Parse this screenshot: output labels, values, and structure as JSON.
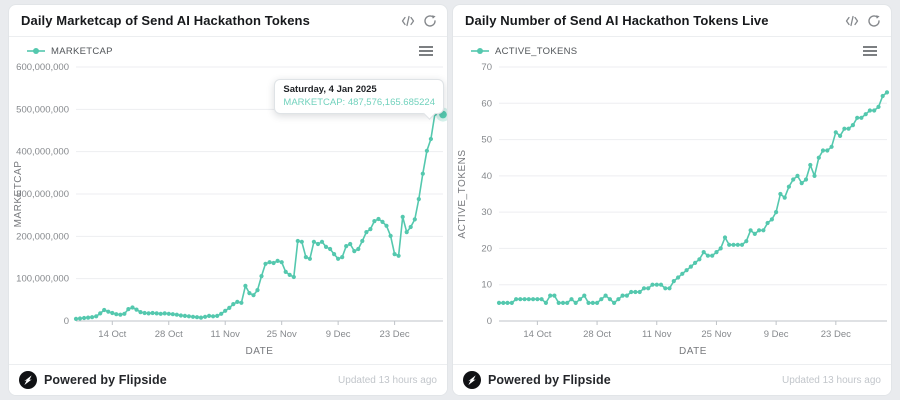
{
  "accent_color": "#54c8ae",
  "footer": {
    "powered_by": "Powered by Flipside",
    "updated": "Updated 13 hours ago"
  },
  "cards": [
    {
      "title": "Daily Marketcap of Send AI Hackathon Tokens",
      "legend": "MARKETCAP",
      "tooltip": {
        "date": "Saturday, 4 Jan 2025",
        "text": "MARKETCAP: 487,576,165.685224"
      }
    },
    {
      "title": "Daily Number of Send AI Hackathon Tokens Live",
      "legend": "ACTIVE_TOKENS"
    }
  ],
  "chart_data": [
    {
      "type": "line",
      "series_name": "MARKETCAP",
      "color": "#54c8ae",
      "xlabel": "DATE",
      "ylabel": "MARKETCAP",
      "ylim": [
        0,
        600000000
      ],
      "y_ticks": [
        0,
        100000000,
        200000000,
        300000000,
        400000000,
        500000000,
        600000000
      ],
      "x_tick_labels": [
        "14 Oct",
        "28 Oct",
        "11 Nov",
        "25 Nov",
        "9 Dec",
        "23 Dec"
      ],
      "x_tick_indices": [
        9,
        23,
        37,
        51,
        65,
        79
      ],
      "grid": true,
      "legend_position": "top-left",
      "highlight_index": 91,
      "values": [
        5000000,
        6000000,
        7000000,
        8000000,
        9000000,
        11000000,
        18000000,
        26000000,
        22000000,
        19000000,
        16000000,
        15000000,
        17000000,
        28000000,
        32000000,
        27000000,
        21000000,
        19000000,
        18000000,
        19000000,
        18000000,
        17000000,
        18000000,
        17000000,
        16000000,
        15000000,
        13000000,
        12000000,
        11000000,
        10000000,
        9000000,
        8000000,
        10000000,
        12000000,
        11000000,
        12000000,
        17000000,
        24000000,
        31000000,
        40000000,
        45000000,
        43000000,
        83000000,
        66000000,
        61000000,
        73000000,
        106000000,
        135000000,
        139000000,
        137000000,
        142000000,
        139000000,
        116000000,
        109000000,
        104000000,
        189000000,
        187000000,
        151000000,
        147000000,
        187000000,
        182000000,
        187000000,
        175000000,
        170000000,
        158000000,
        147000000,
        151000000,
        177000000,
        182000000,
        165000000,
        170000000,
        189000000,
        210000000,
        217000000,
        236000000,
        241000000,
        234000000,
        225000000,
        201000000,
        158000000,
        154000000,
        246000000,
        210000000,
        222000000,
        240000000,
        288000000,
        348000000,
        402000000,
        430000000,
        489000000,
        501000000,
        487576165.685224
      ]
    },
    {
      "type": "line",
      "series_name": "ACTIVE_TOKENS",
      "color": "#54c8ae",
      "xlabel": "DATE",
      "ylabel": "ACTIVE_TOKENS",
      "ylim": [
        0,
        70
      ],
      "y_ticks": [
        0,
        10,
        20,
        30,
        40,
        50,
        60,
        70
      ],
      "x_tick_labels": [
        "14 Oct",
        "28 Oct",
        "11 Nov",
        "25 Nov",
        "9 Dec",
        "23 Dec"
      ],
      "x_tick_indices": [
        9,
        23,
        37,
        51,
        65,
        79
      ],
      "grid": true,
      "legend_position": "top-left",
      "highlight_index": null,
      "values": [
        5,
        5,
        5,
        5,
        6,
        6,
        6,
        6,
        6,
        6,
        6,
        5,
        7,
        7,
        5,
        5,
        5,
        6,
        5,
        6,
        7,
        5,
        5,
        5,
        6,
        7,
        6,
        5,
        6,
        7,
        7,
        8,
        8,
        8,
        9,
        9,
        10,
        10,
        10,
        9,
        9,
        11,
        12,
        13,
        14,
        15,
        16,
        17,
        19,
        18,
        18,
        19,
        20,
        23,
        21,
        21,
        21,
        21,
        22,
        25,
        24,
        25,
        25,
        27,
        28,
        30,
        35,
        34,
        37,
        39,
        40,
        38,
        39,
        43,
        40,
        45,
        47,
        47,
        48,
        52,
        51,
        53,
        53,
        54,
        56,
        56,
        57,
        58,
        58,
        59,
        62,
        63
      ]
    }
  ]
}
